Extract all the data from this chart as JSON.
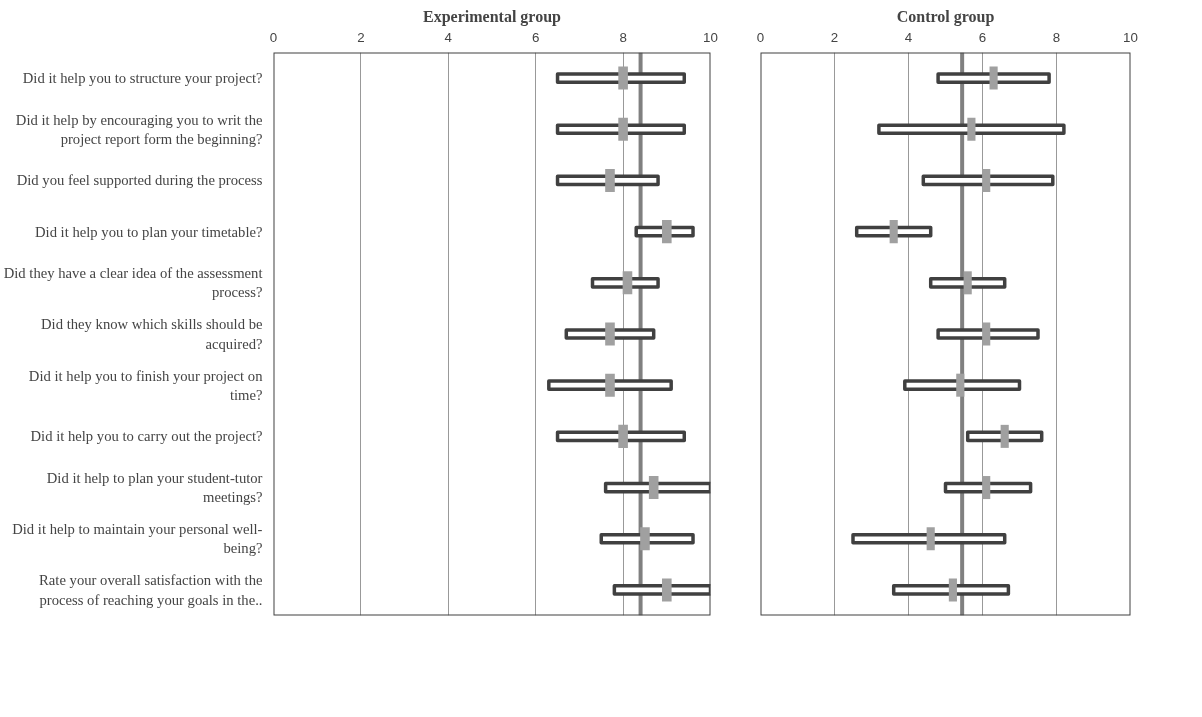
{
  "chart_data": [
    {
      "type": "bar",
      "orientation": "horizontal",
      "title": "Experimental group",
      "categories": [
        "Did it help you to structure your project?",
        "Did it help by encouraging you to writ the project report form the beginning?",
        "Did you feel supported during the process",
        "Did it help you to plan your timetable?",
        "Did they have a clear idea of the assessment process?",
        "Did they know which skills should be acquired?",
        "Did it help you to finish your project on time?",
        "Did it help you to carry out the project?",
        "Did it help to plan your student-tutor meetings?",
        "Did it help to maintain your personal well-being?",
        "Rate your overall satisfaction with the process of reaching your goals in the.."
      ],
      "series": [
        {
          "type": "bar",
          "color": "#404040",
          "base": [
            6.5,
            6.5,
            6.5,
            8.3,
            7.3,
            6.7,
            6.3,
            6.5,
            7.6,
            7.5,
            7.8
          ],
          "values": [
            2.9,
            2.9,
            2.3,
            1.3,
            1.5,
            2.0,
            2.8,
            2.9,
            2.4,
            2.1,
            2.2
          ]
        },
        {
          "type": "scatter",
          "color": "#a0a0a0",
          "values": [
            8.0,
            8.0,
            7.7,
            9.0,
            8.1,
            7.7,
            7.7,
            8.0,
            8.7,
            8.5,
            9.0
          ]
        }
      ],
      "ref_lines": [
        {
          "axis": "x",
          "value": 8.4,
          "color": "#808080"
        }
      ],
      "xlim": [
        0,
        10
      ],
      "xticks": [
        0,
        2,
        4,
        6,
        8,
        10
      ],
      "grid": "x"
    },
    {
      "type": "bar",
      "orientation": "horizontal",
      "title": "Control group",
      "categories": [
        "Did it help you to structure your project?",
        "Did it help by encouraging you to writ the project report form the beginning?",
        "Did you feel supported during the process",
        "Did it help you to plan your timetable?",
        "Did they have a clear idea of the assessment process?",
        "Did they know which skills should be acquired?",
        "Did it help you to finish your project on time?",
        "Did it help you to carry out the project?",
        "Did it help to plan your student-tutor meetings?",
        "Did it help to maintain your personal well-being?",
        "Rate your overall satisfaction with the process of reaching your goals in the.."
      ],
      "series": [
        {
          "type": "bar",
          "color": "#404040",
          "base": [
            4.8,
            3.2,
            4.4,
            2.6,
            4.6,
            4.8,
            3.9,
            5.6,
            5.0,
            2.5,
            3.6
          ],
          "values": [
            3.0,
            5.0,
            3.5,
            2.0,
            2.0,
            2.7,
            3.1,
            2.0,
            2.3,
            4.1,
            3.1
          ]
        },
        {
          "type": "scatter",
          "color": "#a0a0a0",
          "values": [
            6.3,
            5.7,
            6.1,
            3.6,
            5.6,
            6.1,
            5.4,
            6.6,
            6.1,
            4.6,
            5.2
          ]
        }
      ],
      "ref_lines": [
        {
          "axis": "x",
          "value": 5.45,
          "color": "#808080"
        }
      ],
      "xlim": [
        0,
        10
      ],
      "xticks": [
        0,
        2,
        4,
        6,
        8,
        10
      ],
      "grid": "x",
      "tick_labels": "x"
    }
  ]
}
